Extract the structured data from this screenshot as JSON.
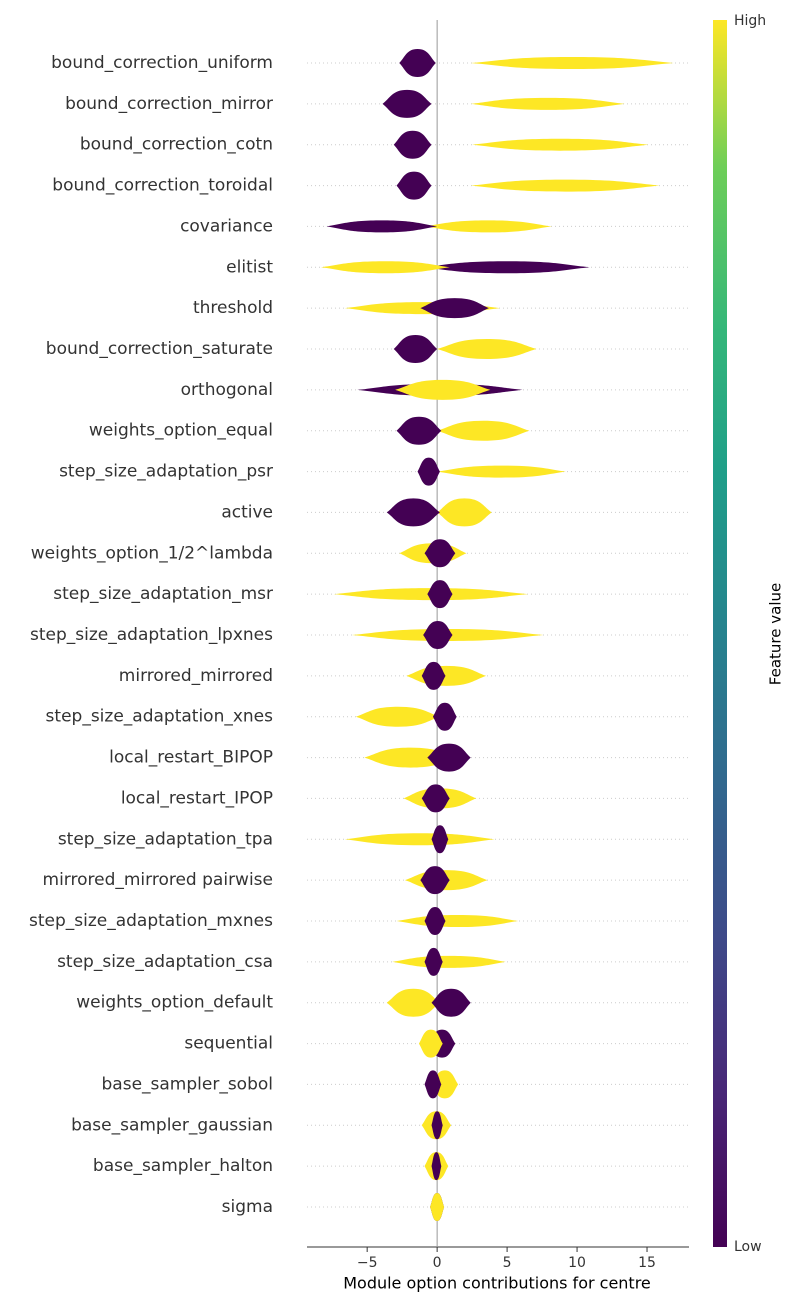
{
  "chart_data": {
    "type": "beeswarm",
    "xlabel": "Module option contributions for centre",
    "colorbar_label": "Feature value",
    "xlim": [
      -9.3,
      18
    ],
    "xticks": [
      {
        "value": -5,
        "label": "−5"
      },
      0,
      5,
      10,
      15
    ],
    "categories": [
      "bound_correction_uniform",
      "bound_correction_mirror",
      "bound_correction_cotn",
      "bound_correction_toroidal",
      "covariance",
      "elitist",
      "threshold",
      "bound_correction_saturate",
      "orthogonal",
      "weights_option_equal",
      "step_size_adaptation_psr",
      "active",
      "weights_option_1/2^lambda",
      "step_size_adaptation_msr",
      "step_size_adaptation_lpxnes",
      "mirrored_mirrored",
      "step_size_adaptation_xnes",
      "local_restart_BIPOP",
      "local_restart_IPOP",
      "step_size_adaptation_tpa",
      "mirrored_mirrored pairwise",
      "step_size_adaptation_mxnes",
      "step_size_adaptation_csa",
      "weights_option_default",
      "sequential",
      "base_sampler_sobol",
      "base_sampler_gaussian",
      "base_sampler_halton",
      "sigma"
    ],
    "series": [
      {
        "name": "Low",
        "color": "#440154",
        "ranges": [
          [
            -2.7,
            -0.1
          ],
          [
            -3.9,
            -0.4
          ],
          [
            -3.1,
            -0.4
          ],
          [
            -2.9,
            -0.4
          ],
          [
            -7.9,
            0
          ],
          [
            -1,
            10.9
          ],
          [
            -1.2,
            3.7
          ],
          [
            -3.1,
            0
          ],
          [
            -5.7,
            6.1
          ],
          [
            -2.9,
            0.3
          ],
          [
            -1.4,
            0.2
          ],
          [
            -3.6,
            0.2
          ],
          [
            -0.9,
            1.3
          ],
          [
            -0.7,
            1.1
          ],
          [
            -1,
            1.1
          ],
          [
            -1.1,
            0.6
          ],
          [
            -0.3,
            1.4
          ],
          [
            -0.7,
            2.4
          ],
          [
            -1.1,
            0.9
          ],
          [
            -0.4,
            0.8
          ],
          [
            -1.2,
            0.9
          ],
          [
            -0.9,
            0.6
          ],
          [
            -0.9,
            0.4
          ],
          [
            -0.4,
            2.4
          ],
          [
            -0.6,
            1.3
          ],
          [
            -0.9,
            0.3
          ],
          [
            -0.4,
            0.4
          ],
          [
            -0.4,
            0.3
          ],
          [
            -0.5,
            0.5
          ]
        ]
      },
      {
        "name": "High",
        "color": "#fde725",
        "ranges": [
          [
            2.4,
            16.9
          ],
          [
            2.4,
            13.4
          ],
          [
            2.5,
            15.1
          ],
          [
            2.4,
            15.9
          ],
          [
            -0.9,
            8.2
          ],
          [
            -8.3,
            0.9
          ],
          [
            -6.6,
            4.5
          ],
          [
            0,
            7.1
          ],
          [
            -3,
            3.8
          ],
          [
            0,
            6.6
          ],
          [
            0,
            9.2
          ],
          [
            0,
            3.9
          ],
          [
            -2.7,
            2.1
          ],
          [
            -7.4,
            6.5
          ],
          [
            -6.1,
            7.6
          ],
          [
            -2.2,
            3.5
          ],
          [
            -5.8,
            0.2
          ],
          [
            -5.2,
            1.4
          ],
          [
            -2.4,
            2.8
          ],
          [
            -6.6,
            4.1
          ],
          [
            -2.3,
            3.6
          ],
          [
            -2.9,
            5.8
          ],
          [
            -3.2,
            4.9
          ],
          [
            -3.6,
            0.2
          ],
          [
            -1.3,
            0.4
          ],
          [
            -0.4,
            1.5
          ],
          [
            -1.1,
            1
          ],
          [
            -0.9,
            0.8
          ],
          [
            -0.5,
            0.5
          ]
        ]
      }
    ]
  }
}
